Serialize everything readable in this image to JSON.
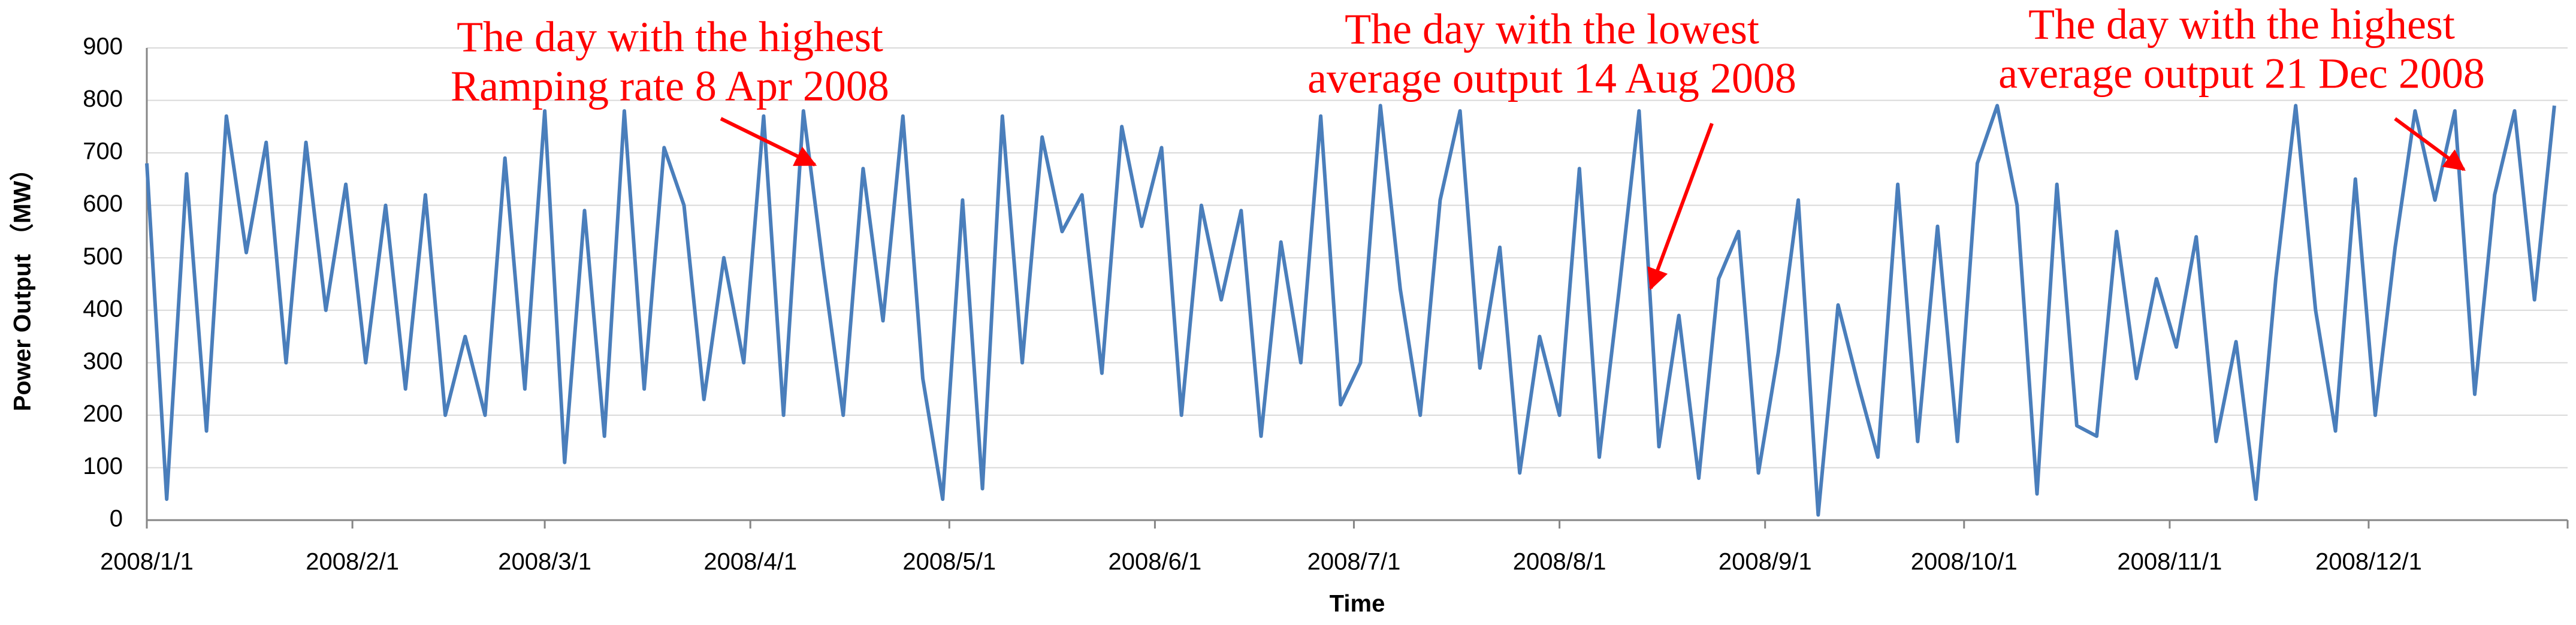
{
  "chart_data": {
    "type": "line",
    "y_label": "Power Output （MW）",
    "x_label": "Time",
    "annotations": [
      {
        "lines": [
          "The day with the highest",
          "Ramping rate 8 Apr 2008"
        ]
      },
      {
        "lines": [
          "The day with the lowest",
          "average output 14 Aug 2008"
        ]
      },
      {
        "lines": [
          "The day with the highest",
          "average output 21 Dec 2008"
        ]
      }
    ],
    "x": [
      "2008/1/1",
      "2008/1/4",
      "2008/1/7",
      "2008/1/10",
      "2008/1/13",
      "2008/1/16",
      "2008/1/19",
      "2008/1/22",
      "2008/1/25",
      "2008/1/28",
      "2008/1/31",
      "2008/2/3",
      "2008/2/6",
      "2008/2/9",
      "2008/2/12",
      "2008/2/15",
      "2008/2/18",
      "2008/2/21",
      "2008/2/24",
      "2008/2/27",
      "2008/3/1",
      "2008/3/4",
      "2008/3/7",
      "2008/3/10",
      "2008/3/13",
      "2008/3/16",
      "2008/3/19",
      "2008/3/22",
      "2008/3/25",
      "2008/3/28",
      "2008/3/31",
      "2008/4/3",
      "2008/4/6",
      "2008/4/9",
      "2008/4/12",
      "2008/4/15",
      "2008/4/18",
      "2008/4/21",
      "2008/4/24",
      "2008/4/27",
      "2008/4/30",
      "2008/5/3",
      "2008/5/6",
      "2008/5/9",
      "2008/5/12",
      "2008/5/15",
      "2008/5/18",
      "2008/5/21",
      "2008/5/24",
      "2008/5/27",
      "2008/5/30",
      "2008/6/2",
      "2008/6/5",
      "2008/6/8",
      "2008/6/11",
      "2008/6/14",
      "2008/6/17",
      "2008/6/20",
      "2008/6/23",
      "2008/6/26",
      "2008/6/29",
      "2008/7/2",
      "2008/7/5",
      "2008/7/8",
      "2008/7/11",
      "2008/7/14",
      "2008/7/17",
      "2008/7/20",
      "2008/7/23",
      "2008/7/26",
      "2008/7/29",
      "2008/8/1",
      "2008/8/4",
      "2008/8/7",
      "2008/8/10",
      "2008/8/13",
      "2008/8/16",
      "2008/8/19",
      "2008/8/22",
      "2008/8/25",
      "2008/8/28",
      "2008/8/31",
      "2008/9/3",
      "2008/9/6",
      "2008/9/9",
      "2008/9/12",
      "2008/9/15",
      "2008/9/18",
      "2008/9/21",
      "2008/9/24",
      "2008/9/27",
      "2008/9/30",
      "2008/10/3",
      "2008/10/6",
      "2008/10/9",
      "2008/10/12",
      "2008/10/15",
      "2008/10/18",
      "2008/10/21",
      "2008/10/24",
      "2008/10/27",
      "2008/10/30",
      "2008/11/2",
      "2008/11/5",
      "2008/11/8",
      "2008/11/11",
      "2008/11/14",
      "2008/11/17",
      "2008/11/20",
      "2008/11/23",
      "2008/11/26",
      "2008/11/29",
      "2008/12/2",
      "2008/12/5",
      "2008/12/8",
      "2008/12/11",
      "2008/12/14",
      "2008/12/17",
      "2008/12/20",
      "2008/12/23",
      "2008/12/26",
      "2008/12/29"
    ],
    "series": [
      {
        "name": "Power Output",
        "color": "#4a7ebb",
        "values": [
          680,
          40,
          660,
          170,
          770,
          510,
          720,
          300,
          720,
          400,
          640,
          300,
          600,
          250,
          620,
          200,
          350,
          200,
          690,
          250,
          780,
          110,
          590,
          160,
          780,
          250,
          710,
          600,
          230,
          500,
          300,
          770,
          200,
          780,
          480,
          200,
          670,
          380,
          770,
          270,
          40,
          610,
          60,
          770,
          300,
          730,
          550,
          620,
          280,
          750,
          560,
          710,
          200,
          600,
          420,
          590,
          160,
          530,
          300,
          770,
          220,
          300,
          790,
          440,
          200,
          610,
          780,
          290,
          520,
          90,
          350,
          200,
          670,
          120,
          440,
          780,
          140,
          390,
          80,
          460,
          550,
          90,
          320,
          610,
          10,
          410,
          260,
          120,
          640,
          150,
          560,
          150,
          680,
          790,
          600,
          50,
          640,
          180,
          160,
          550,
          270,
          460,
          330,
          540,
          150,
          340,
          40,
          460,
          790,
          400,
          170,
          650,
          200,
          520,
          780,
          610,
          780,
          240,
          620,
          780,
          420,
          790
        ]
      }
    ],
    "xlim": [
      "2008/1/1",
      "2008/12/31"
    ],
    "xticks": [
      "2008/1/1",
      "2008/2/1",
      "2008/3/1",
      "2008/4/1",
      "2008/5/1",
      "2008/6/1",
      "2008/7/1",
      "2008/8/1",
      "2008/9/1",
      "2008/10/1",
      "2008/11/1",
      "2008/12/1"
    ],
    "ylim": [
      0,
      900
    ],
    "yticks": [
      0,
      100,
      200,
      300,
      400,
      500,
      600,
      700,
      800,
      900
    ],
    "grid": true
  }
}
